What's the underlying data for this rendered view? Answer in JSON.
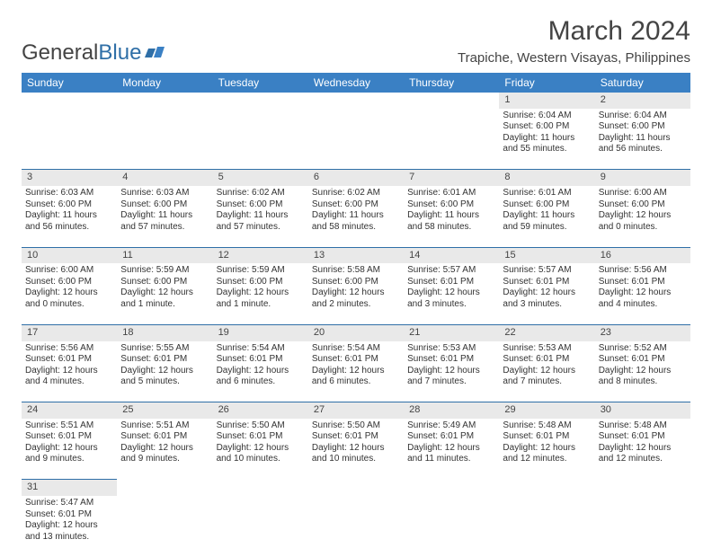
{
  "brand": {
    "part1": "General",
    "part2": "Blue"
  },
  "title": "March 2024",
  "location": "Trapiche, Western Visayas, Philippines",
  "colors": {
    "header_bg": "#3a80c4",
    "header_fg": "#ffffff",
    "daynum_bg": "#e9e9e9",
    "rule": "#2f6fa7",
    "text": "#333333",
    "brand_blue": "#2f6fa7"
  },
  "weekdays": [
    "Sunday",
    "Monday",
    "Tuesday",
    "Wednesday",
    "Thursday",
    "Friday",
    "Saturday"
  ],
  "weeks": [
    {
      "nums": [
        "",
        "",
        "",
        "",
        "",
        "1",
        "2"
      ],
      "cells": [
        [],
        [],
        [],
        [],
        [],
        [
          "Sunrise: 6:04 AM",
          "Sunset: 6:00 PM",
          "Daylight: 11 hours",
          "and 55 minutes."
        ],
        [
          "Sunrise: 6:04 AM",
          "Sunset: 6:00 PM",
          "Daylight: 11 hours",
          "and 56 minutes."
        ]
      ]
    },
    {
      "nums": [
        "3",
        "4",
        "5",
        "6",
        "7",
        "8",
        "9"
      ],
      "cells": [
        [
          "Sunrise: 6:03 AM",
          "Sunset: 6:00 PM",
          "Daylight: 11 hours",
          "and 56 minutes."
        ],
        [
          "Sunrise: 6:03 AM",
          "Sunset: 6:00 PM",
          "Daylight: 11 hours",
          "and 57 minutes."
        ],
        [
          "Sunrise: 6:02 AM",
          "Sunset: 6:00 PM",
          "Daylight: 11 hours",
          "and 57 minutes."
        ],
        [
          "Sunrise: 6:02 AM",
          "Sunset: 6:00 PM",
          "Daylight: 11 hours",
          "and 58 minutes."
        ],
        [
          "Sunrise: 6:01 AM",
          "Sunset: 6:00 PM",
          "Daylight: 11 hours",
          "and 58 minutes."
        ],
        [
          "Sunrise: 6:01 AM",
          "Sunset: 6:00 PM",
          "Daylight: 11 hours",
          "and 59 minutes."
        ],
        [
          "Sunrise: 6:00 AM",
          "Sunset: 6:00 PM",
          "Daylight: 12 hours",
          "and 0 minutes."
        ]
      ]
    },
    {
      "nums": [
        "10",
        "11",
        "12",
        "13",
        "14",
        "15",
        "16"
      ],
      "cells": [
        [
          "Sunrise: 6:00 AM",
          "Sunset: 6:00 PM",
          "Daylight: 12 hours",
          "and 0 minutes."
        ],
        [
          "Sunrise: 5:59 AM",
          "Sunset: 6:00 PM",
          "Daylight: 12 hours",
          "and 1 minute."
        ],
        [
          "Sunrise: 5:59 AM",
          "Sunset: 6:00 PM",
          "Daylight: 12 hours",
          "and 1 minute."
        ],
        [
          "Sunrise: 5:58 AM",
          "Sunset: 6:00 PM",
          "Daylight: 12 hours",
          "and 2 minutes."
        ],
        [
          "Sunrise: 5:57 AM",
          "Sunset: 6:01 PM",
          "Daylight: 12 hours",
          "and 3 minutes."
        ],
        [
          "Sunrise: 5:57 AM",
          "Sunset: 6:01 PM",
          "Daylight: 12 hours",
          "and 3 minutes."
        ],
        [
          "Sunrise: 5:56 AM",
          "Sunset: 6:01 PM",
          "Daylight: 12 hours",
          "and 4 minutes."
        ]
      ]
    },
    {
      "nums": [
        "17",
        "18",
        "19",
        "20",
        "21",
        "22",
        "23"
      ],
      "cells": [
        [
          "Sunrise: 5:56 AM",
          "Sunset: 6:01 PM",
          "Daylight: 12 hours",
          "and 4 minutes."
        ],
        [
          "Sunrise: 5:55 AM",
          "Sunset: 6:01 PM",
          "Daylight: 12 hours",
          "and 5 minutes."
        ],
        [
          "Sunrise: 5:54 AM",
          "Sunset: 6:01 PM",
          "Daylight: 12 hours",
          "and 6 minutes."
        ],
        [
          "Sunrise: 5:54 AM",
          "Sunset: 6:01 PM",
          "Daylight: 12 hours",
          "and 6 minutes."
        ],
        [
          "Sunrise: 5:53 AM",
          "Sunset: 6:01 PM",
          "Daylight: 12 hours",
          "and 7 minutes."
        ],
        [
          "Sunrise: 5:53 AM",
          "Sunset: 6:01 PM",
          "Daylight: 12 hours",
          "and 7 minutes."
        ],
        [
          "Sunrise: 5:52 AM",
          "Sunset: 6:01 PM",
          "Daylight: 12 hours",
          "and 8 minutes."
        ]
      ]
    },
    {
      "nums": [
        "24",
        "25",
        "26",
        "27",
        "28",
        "29",
        "30"
      ],
      "cells": [
        [
          "Sunrise: 5:51 AM",
          "Sunset: 6:01 PM",
          "Daylight: 12 hours",
          "and 9 minutes."
        ],
        [
          "Sunrise: 5:51 AM",
          "Sunset: 6:01 PM",
          "Daylight: 12 hours",
          "and 9 minutes."
        ],
        [
          "Sunrise: 5:50 AM",
          "Sunset: 6:01 PM",
          "Daylight: 12 hours",
          "and 10 minutes."
        ],
        [
          "Sunrise: 5:50 AM",
          "Sunset: 6:01 PM",
          "Daylight: 12 hours",
          "and 10 minutes."
        ],
        [
          "Sunrise: 5:49 AM",
          "Sunset: 6:01 PM",
          "Daylight: 12 hours",
          "and 11 minutes."
        ],
        [
          "Sunrise: 5:48 AM",
          "Sunset: 6:01 PM",
          "Daylight: 12 hours",
          "and 12 minutes."
        ],
        [
          "Sunrise: 5:48 AM",
          "Sunset: 6:01 PM",
          "Daylight: 12 hours",
          "and 12 minutes."
        ]
      ]
    },
    {
      "nums": [
        "31",
        "",
        "",
        "",
        "",
        "",
        ""
      ],
      "cells": [
        [
          "Sunrise: 5:47 AM",
          "Sunset: 6:01 PM",
          "Daylight: 12 hours",
          "and 13 minutes."
        ],
        [],
        [],
        [],
        [],
        [],
        []
      ]
    }
  ]
}
